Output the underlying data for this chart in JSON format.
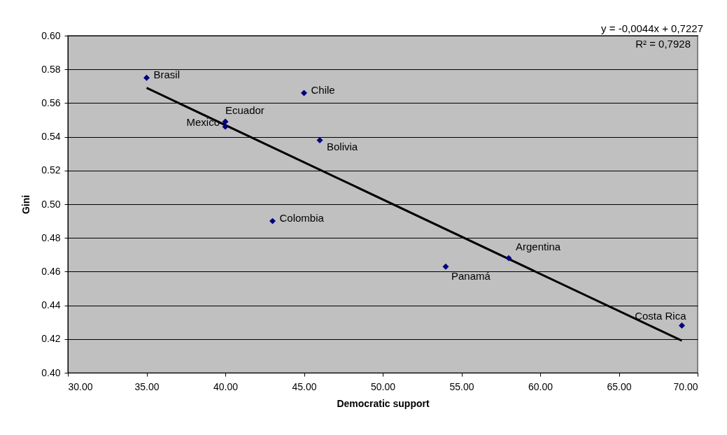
{
  "chart_data": {
    "type": "scatter",
    "xlabel": "Democratic support",
    "ylabel": "Gini",
    "series": [
      {
        "color": "#000080",
        "marker": "diamond",
        "x": [
          35,
          45,
          40,
          40,
          46,
          43,
          54,
          58,
          69
        ],
        "values": [
          0.575,
          0.566,
          0.549,
          0.546,
          0.538,
          0.49,
          0.463,
          0.468,
          0.428
        ]
      },
      {
        "type": "line",
        "color": "#000000",
        "line_style": "solid",
        "x": [
          35,
          69
        ],
        "values": [
          0.569,
          0.419
        ]
      }
    ],
    "annotations": [
      {
        "text": "Brasil",
        "x": 35,
        "y": 0.575
      },
      {
        "text": "Chile",
        "x": 45,
        "y": 0.566
      },
      {
        "text": "Ecuador",
        "x": 40,
        "y": 0.549
      },
      {
        "text": "Mexico",
        "x": 40,
        "y": 0.546
      },
      {
        "text": "Bolivia",
        "x": 46,
        "y": 0.538
      },
      {
        "text": "Colombia",
        "x": 43,
        "y": 0.49
      },
      {
        "text": "Panamá",
        "x": 54,
        "y": 0.463
      },
      {
        "text": "Argentina",
        "x": 58,
        "y": 0.468
      },
      {
        "text": "Costa Rica",
        "x": 69,
        "y": 0.428
      },
      "y = -0,0044x + 0,7227",
      "R² = 0,7928"
    ],
    "xlim": [
      30,
      70
    ],
    "xticks": [
      {
        "value": 30,
        "label": "30.00"
      },
      {
        "value": 35,
        "label": "35.00"
      },
      {
        "value": 40,
        "label": "40.00"
      },
      {
        "value": 45,
        "label": "45.00"
      },
      {
        "value": 50,
        "label": "50.00"
      },
      {
        "value": 55,
        "label": "55.00"
      },
      {
        "value": 60,
        "label": "60.00"
      },
      {
        "value": 65,
        "label": "65.00"
      },
      {
        "value": 70,
        "label": "70.00"
      }
    ],
    "ylim": [
      0.4,
      0.6
    ],
    "yticks": [
      {
        "value": 0.4,
        "label": "0.40"
      },
      {
        "value": 0.42,
        "label": "0.42"
      },
      {
        "value": 0.44,
        "label": "0.44"
      },
      {
        "value": 0.46,
        "label": "0.46"
      },
      {
        "value": 0.48,
        "label": "0.48"
      },
      {
        "value": 0.5,
        "label": "0.50"
      },
      {
        "value": 0.52,
        "label": "0.52"
      },
      {
        "value": 0.54,
        "label": "0.54"
      },
      {
        "value": 0.56,
        "label": "0.56"
      },
      {
        "value": 0.58,
        "label": "0.58"
      },
      {
        "value": 0.6,
        "label": "0.60"
      }
    ],
    "grid": "y"
  }
}
